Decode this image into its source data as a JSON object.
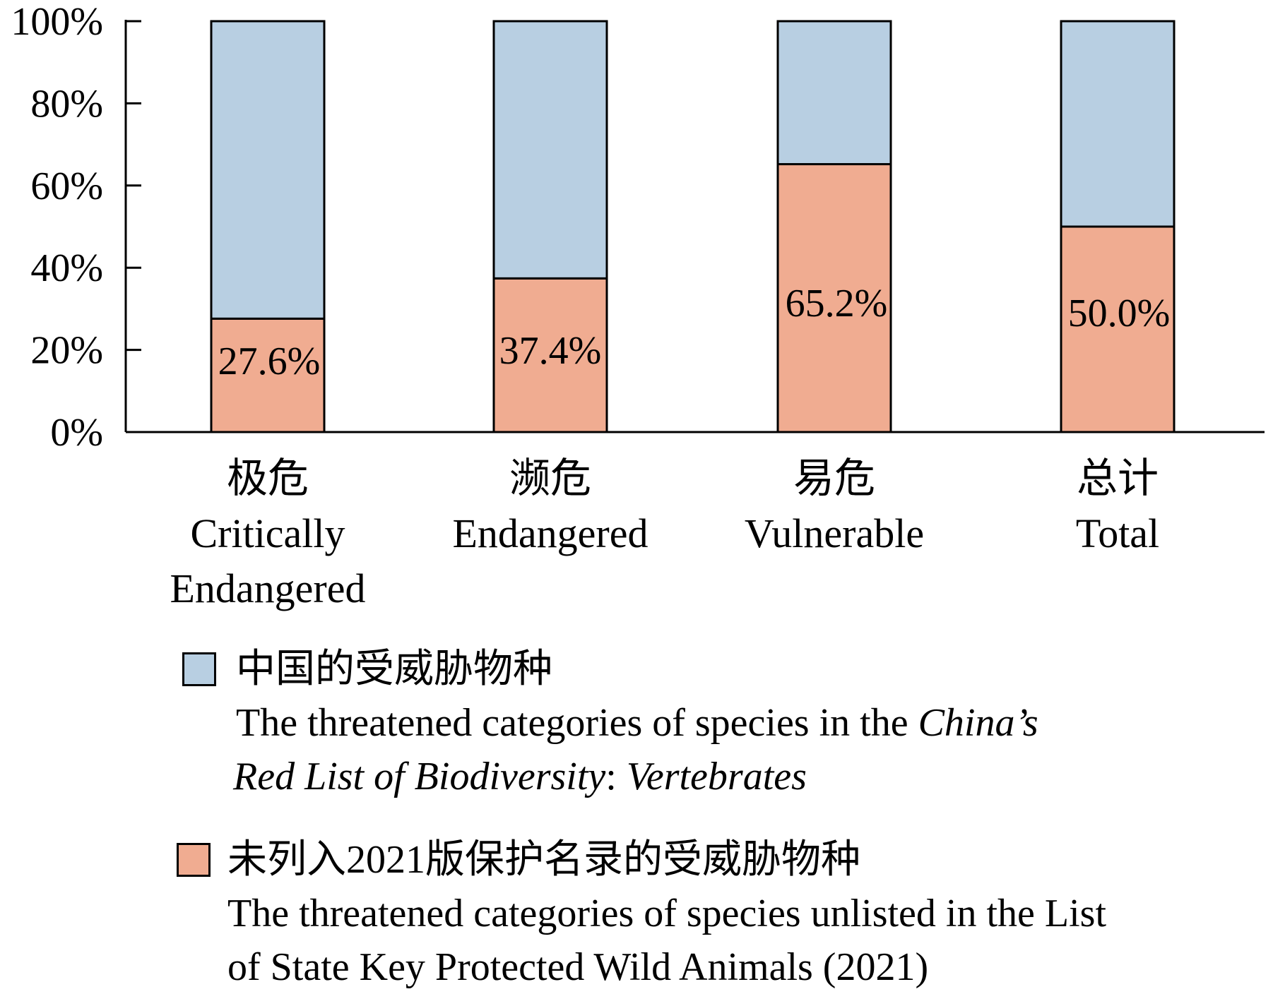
{
  "chart_data": {
    "type": "bar",
    "stacked": true,
    "percent": true,
    "categories": [
      {
        "zh": "极危",
        "en": [
          "Critically",
          "Endangered"
        ]
      },
      {
        "zh": "濒危",
        "en": [
          "Endangered"
        ]
      },
      {
        "zh": "易危",
        "en": [
          "Vulnerable"
        ]
      },
      {
        "zh": "总计",
        "en": [
          "Total"
        ]
      }
    ],
    "series": [
      {
        "values": [
          27.6,
          37.4,
          65.2,
          50.0
        ],
        "data_labels": [
          "27.6%",
          "37.4%",
          "65.2%",
          "50.0%"
        ],
        "color": "#F0AC91"
      },
      {
        "values": [
          72.4,
          62.6,
          34.8,
          50.0
        ],
        "color": "#B8CFE2"
      }
    ],
    "y_ticks": [
      "0%",
      "20%",
      "40%",
      "60%",
      "80%",
      "100%"
    ],
    "ylim": [
      0,
      100
    ],
    "grid": false,
    "legend_position": "bottom"
  },
  "legend": {
    "blue": {
      "zh": "中国的受威胁物种",
      "en_line1_plain": "The threatened categories of species in the ",
      "en_line1_italic": "China’s",
      "en_line2_italic_a": "Red List of Biodiversity",
      "en_line2_plain": ": ",
      "en_line2_italic_b": "Vertebrates",
      "color": "#B8CFE2"
    },
    "orange": {
      "zh": "未列入2021版保护名录的受威胁物种",
      "en_line1": "The threatened categories of species unlisted in the List",
      "en_line2": "of State Key Protected Wild Animals (2021)",
      "color": "#F0AC91"
    }
  }
}
